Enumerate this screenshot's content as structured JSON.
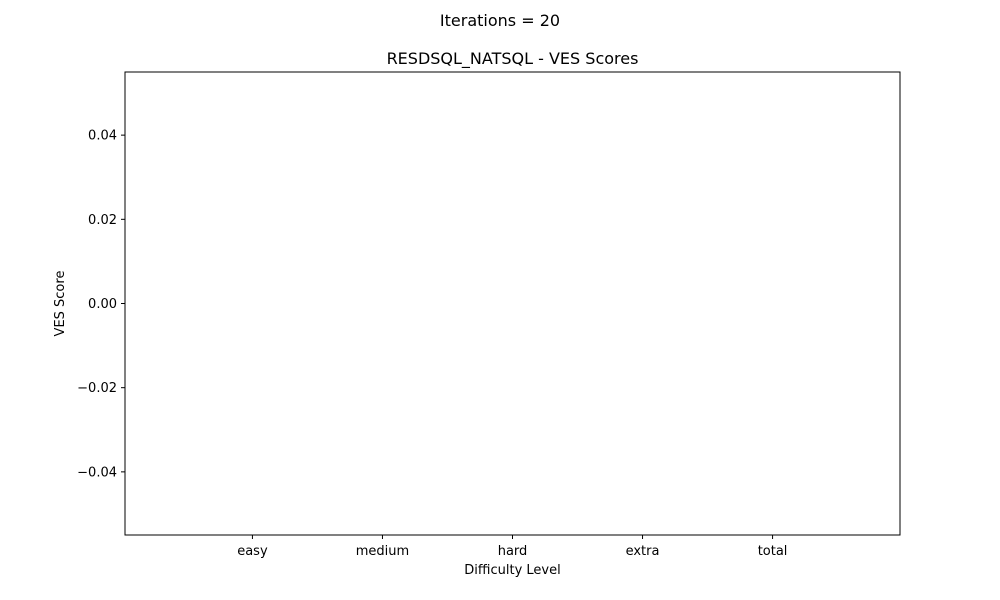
{
  "chart_data": {
    "type": "bar",
    "suptitle": "Iterations = 20",
    "title": "RESDSQL_NATSQL - VES Scores",
    "xlabel": "Difficulty Level",
    "ylabel": "VES Score",
    "categories": [
      "easy",
      "medium",
      "hard",
      "extra",
      "total"
    ],
    "values": [
      0,
      0,
      0,
      0,
      0
    ],
    "ylim": [
      -0.055,
      0.055
    ],
    "yticks": [
      0.04,
      0.02,
      0.0,
      -0.02,
      -0.04
    ],
    "ytick_labels": [
      "0.04",
      "0.02",
      "0.00",
      "−0.02",
      "−0.04"
    ],
    "grid": false,
    "colors": {
      "bar": "#1f77b4",
      "axes": "#000000",
      "background": "#ffffff"
    }
  }
}
